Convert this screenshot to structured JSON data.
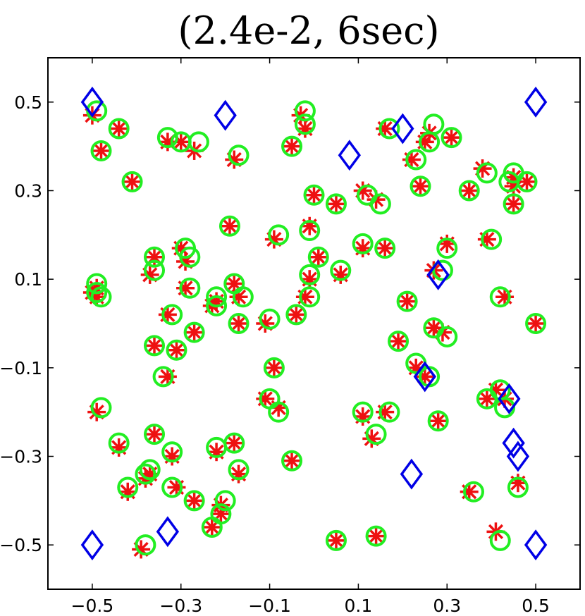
{
  "chart_data": {
    "type": "scatter",
    "title": "(2.4e-2, 6sec)",
    "xlabel": "",
    "ylabel": "",
    "xlim": [
      -0.6,
      0.6
    ],
    "ylim": [
      -0.6,
      0.6
    ],
    "x_ticks": [
      -0.5,
      -0.3,
      -0.1,
      0.1,
      0.3,
      0.5
    ],
    "x_tick_labels": [
      "−0.5",
      "−0.3",
      "−0.1",
      "0.1",
      "0.3",
      "0.5"
    ],
    "y_ticks": [
      0.5,
      0.3,
      0.1,
      -0.1,
      -0.3,
      -0.5
    ],
    "y_tick_labels": [
      "0.5",
      "0.3",
      "0.1",
      "−0.1",
      "−0.3",
      "−0.5"
    ],
    "grid": false,
    "legend": false,
    "colors": {
      "diamond": "#0000e6",
      "circle": "#22ee22",
      "star": "#ee1111"
    },
    "series": [
      {
        "marker": "diamond",
        "points": [
          [
            -0.5,
            0.5
          ],
          [
            -0.2,
            0.47
          ],
          [
            0.08,
            0.38
          ],
          [
            0.2,
            0.44
          ],
          [
            0.5,
            0.5
          ],
          [
            0.28,
            0.11
          ],
          [
            0.25,
            -0.12
          ],
          [
            0.44,
            -0.17
          ],
          [
            0.45,
            -0.27
          ],
          [
            0.46,
            -0.3
          ],
          [
            0.22,
            -0.34
          ],
          [
            -0.5,
            -0.5
          ],
          [
            -0.33,
            -0.47
          ],
          [
            0.5,
            -0.5
          ]
        ]
      },
      {
        "marker": "circle",
        "points": [
          [
            -0.49,
            0.48
          ],
          [
            -0.44,
            0.44
          ],
          [
            -0.48,
            0.39
          ],
          [
            -0.41,
            0.32
          ],
          [
            -0.33,
            0.42
          ],
          [
            -0.3,
            0.41
          ],
          [
            -0.26,
            0.41
          ],
          [
            -0.17,
            0.38
          ],
          [
            -0.05,
            0.4
          ],
          [
            -0.02,
            0.48
          ],
          [
            -0.02,
            0.45
          ],
          [
            0.17,
            0.44
          ],
          [
            0.27,
            0.45
          ],
          [
            0.26,
            0.41
          ],
          [
            0.31,
            0.42
          ],
          [
            0.23,
            0.37
          ],
          [
            0.24,
            0.31
          ],
          [
            0.35,
            0.3
          ],
          [
            0.39,
            0.34
          ],
          [
            0.45,
            0.34
          ],
          [
            0.44,
            0.32
          ],
          [
            0.48,
            0.32
          ],
          [
            0.45,
            0.27
          ],
          [
            0.0,
            0.29
          ],
          [
            0.05,
            0.27
          ],
          [
            0.12,
            0.29
          ],
          [
            0.15,
            0.27
          ],
          [
            -0.19,
            0.22
          ],
          [
            -0.08,
            0.2
          ],
          [
            -0.01,
            0.21
          ],
          [
            0.11,
            0.18
          ],
          [
            0.16,
            0.17
          ],
          [
            0.01,
            0.15
          ],
          [
            -0.01,
            0.11
          ],
          [
            0.06,
            0.12
          ],
          [
            0.3,
            0.17
          ],
          [
            0.4,
            0.19
          ],
          [
            0.29,
            0.12
          ],
          [
            -0.36,
            0.15
          ],
          [
            -0.29,
            0.17
          ],
          [
            -0.28,
            0.15
          ],
          [
            -0.36,
            0.12
          ],
          [
            -0.49,
            0.09
          ],
          [
            -0.49,
            0.07
          ],
          [
            -0.48,
            0.06
          ],
          [
            -0.28,
            0.08
          ],
          [
            -0.18,
            0.09
          ],
          [
            -0.22,
            0.06
          ],
          [
            -0.22,
            0.04
          ],
          [
            -0.16,
            0.06
          ],
          [
            -0.32,
            0.02
          ],
          [
            -0.27,
            -0.02
          ],
          [
            -0.17,
            0.0
          ],
          [
            -0.1,
            0.01
          ],
          [
            -0.04,
            0.02
          ],
          [
            -0.01,
            0.06
          ],
          [
            0.21,
            0.05
          ],
          [
            0.42,
            0.06
          ],
          [
            0.5,
            0.0
          ],
          [
            0.27,
            -0.01
          ],
          [
            0.3,
            -0.03
          ],
          [
            0.19,
            -0.04
          ],
          [
            -0.36,
            -0.05
          ],
          [
            -0.31,
            -0.06
          ],
          [
            -0.34,
            -0.12
          ],
          [
            -0.09,
            -0.1
          ],
          [
            0.23,
            -0.09
          ],
          [
            0.26,
            -0.12
          ],
          [
            -0.48,
            -0.19
          ],
          [
            -0.1,
            -0.17
          ],
          [
            -0.08,
            -0.2
          ],
          [
            0.11,
            -0.2
          ],
          [
            0.17,
            -0.2
          ],
          [
            0.28,
            -0.22
          ],
          [
            0.39,
            -0.17
          ],
          [
            0.42,
            -0.15
          ],
          [
            0.43,
            -0.19
          ],
          [
            -0.44,
            -0.27
          ],
          [
            -0.36,
            -0.25
          ],
          [
            -0.32,
            -0.29
          ],
          [
            -0.22,
            -0.28
          ],
          [
            -0.18,
            -0.27
          ],
          [
            -0.17,
            -0.33
          ],
          [
            -0.05,
            -0.31
          ],
          [
            0.14,
            -0.25
          ],
          [
            -0.37,
            -0.33
          ],
          [
            -0.38,
            -0.34
          ],
          [
            -0.42,
            -0.37
          ],
          [
            -0.32,
            -0.37
          ],
          [
            -0.27,
            -0.4
          ],
          [
            -0.2,
            -0.4
          ],
          [
            -0.21,
            -0.43
          ],
          [
            -0.23,
            -0.46
          ],
          [
            0.36,
            -0.38
          ],
          [
            0.46,
            -0.37
          ],
          [
            -0.38,
            -0.5
          ],
          [
            0.05,
            -0.49
          ],
          [
            0.14,
            -0.48
          ],
          [
            0.42,
            -0.49
          ]
        ]
      },
      {
        "marker": "star",
        "points": [
          [
            -0.5,
            0.47
          ],
          [
            -0.44,
            0.44
          ],
          [
            -0.48,
            0.39
          ],
          [
            -0.41,
            0.32
          ],
          [
            -0.33,
            0.41
          ],
          [
            -0.3,
            0.41
          ],
          [
            -0.27,
            0.39
          ],
          [
            -0.18,
            0.37
          ],
          [
            -0.05,
            0.4
          ],
          [
            -0.03,
            0.47
          ],
          [
            -0.02,
            0.44
          ],
          [
            0.16,
            0.44
          ],
          [
            0.26,
            0.43
          ],
          [
            0.25,
            0.41
          ],
          [
            0.31,
            0.42
          ],
          [
            0.22,
            0.37
          ],
          [
            0.24,
            0.31
          ],
          [
            0.35,
            0.3
          ],
          [
            0.38,
            0.35
          ],
          [
            0.45,
            0.31
          ],
          [
            0.45,
            0.33
          ],
          [
            0.48,
            0.32
          ],
          [
            0.45,
            0.27
          ],
          [
            0.0,
            0.29
          ],
          [
            0.05,
            0.27
          ],
          [
            0.11,
            0.3
          ],
          [
            0.14,
            0.28
          ],
          [
            -0.19,
            0.22
          ],
          [
            -0.09,
            0.19
          ],
          [
            -0.01,
            0.22
          ],
          [
            0.11,
            0.17
          ],
          [
            0.16,
            0.17
          ],
          [
            0.01,
            0.15
          ],
          [
            -0.01,
            0.1
          ],
          [
            0.06,
            0.11
          ],
          [
            0.3,
            0.18
          ],
          [
            0.39,
            0.19
          ],
          [
            0.27,
            0.12
          ],
          [
            -0.36,
            0.15
          ],
          [
            -0.3,
            0.17
          ],
          [
            -0.29,
            0.14
          ],
          [
            -0.37,
            0.11
          ],
          [
            -0.5,
            0.07
          ],
          [
            -0.49,
            0.08
          ],
          [
            -0.49,
            0.06
          ],
          [
            -0.29,
            0.08
          ],
          [
            -0.18,
            0.09
          ],
          [
            -0.22,
            0.05
          ],
          [
            -0.23,
            0.04
          ],
          [
            -0.17,
            0.06
          ],
          [
            -0.33,
            0.02
          ],
          [
            -0.27,
            -0.02
          ],
          [
            -0.17,
            0.0
          ],
          [
            -0.11,
            0.0
          ],
          [
            -0.04,
            0.02
          ],
          [
            -0.02,
            0.06
          ],
          [
            0.21,
            0.05
          ],
          [
            0.43,
            0.06
          ],
          [
            0.5,
            0.0
          ],
          [
            0.27,
            -0.01
          ],
          [
            0.29,
            -0.02
          ],
          [
            0.19,
            -0.04
          ],
          [
            -0.36,
            -0.05
          ],
          [
            -0.31,
            -0.06
          ],
          [
            -0.33,
            -0.12
          ],
          [
            -0.09,
            -0.1
          ],
          [
            0.23,
            -0.1
          ],
          [
            0.25,
            -0.12
          ],
          [
            -0.49,
            -0.2
          ],
          [
            -0.11,
            -0.17
          ],
          [
            -0.08,
            -0.19
          ],
          [
            0.11,
            -0.21
          ],
          [
            0.16,
            -0.2
          ],
          [
            0.28,
            -0.22
          ],
          [
            0.39,
            -0.17
          ],
          [
            0.41,
            -0.15
          ],
          [
            0.43,
            -0.17
          ],
          [
            -0.44,
            -0.28
          ],
          [
            -0.36,
            -0.25
          ],
          [
            -0.32,
            -0.3
          ],
          [
            -0.22,
            -0.29
          ],
          [
            -0.18,
            -0.27
          ],
          [
            -0.17,
            -0.34
          ],
          [
            -0.05,
            -0.31
          ],
          [
            0.13,
            -0.26
          ],
          [
            -0.37,
            -0.34
          ],
          [
            -0.38,
            -0.35
          ],
          [
            -0.42,
            -0.38
          ],
          [
            -0.31,
            -0.37
          ],
          [
            -0.27,
            -0.4
          ],
          [
            -0.21,
            -0.41
          ],
          [
            -0.21,
            -0.43
          ],
          [
            -0.23,
            -0.46
          ],
          [
            0.35,
            -0.38
          ],
          [
            0.46,
            -0.36
          ],
          [
            -0.39,
            -0.51
          ],
          [
            0.05,
            -0.49
          ],
          [
            0.14,
            -0.48
          ],
          [
            0.41,
            -0.47
          ]
        ]
      }
    ]
  }
}
